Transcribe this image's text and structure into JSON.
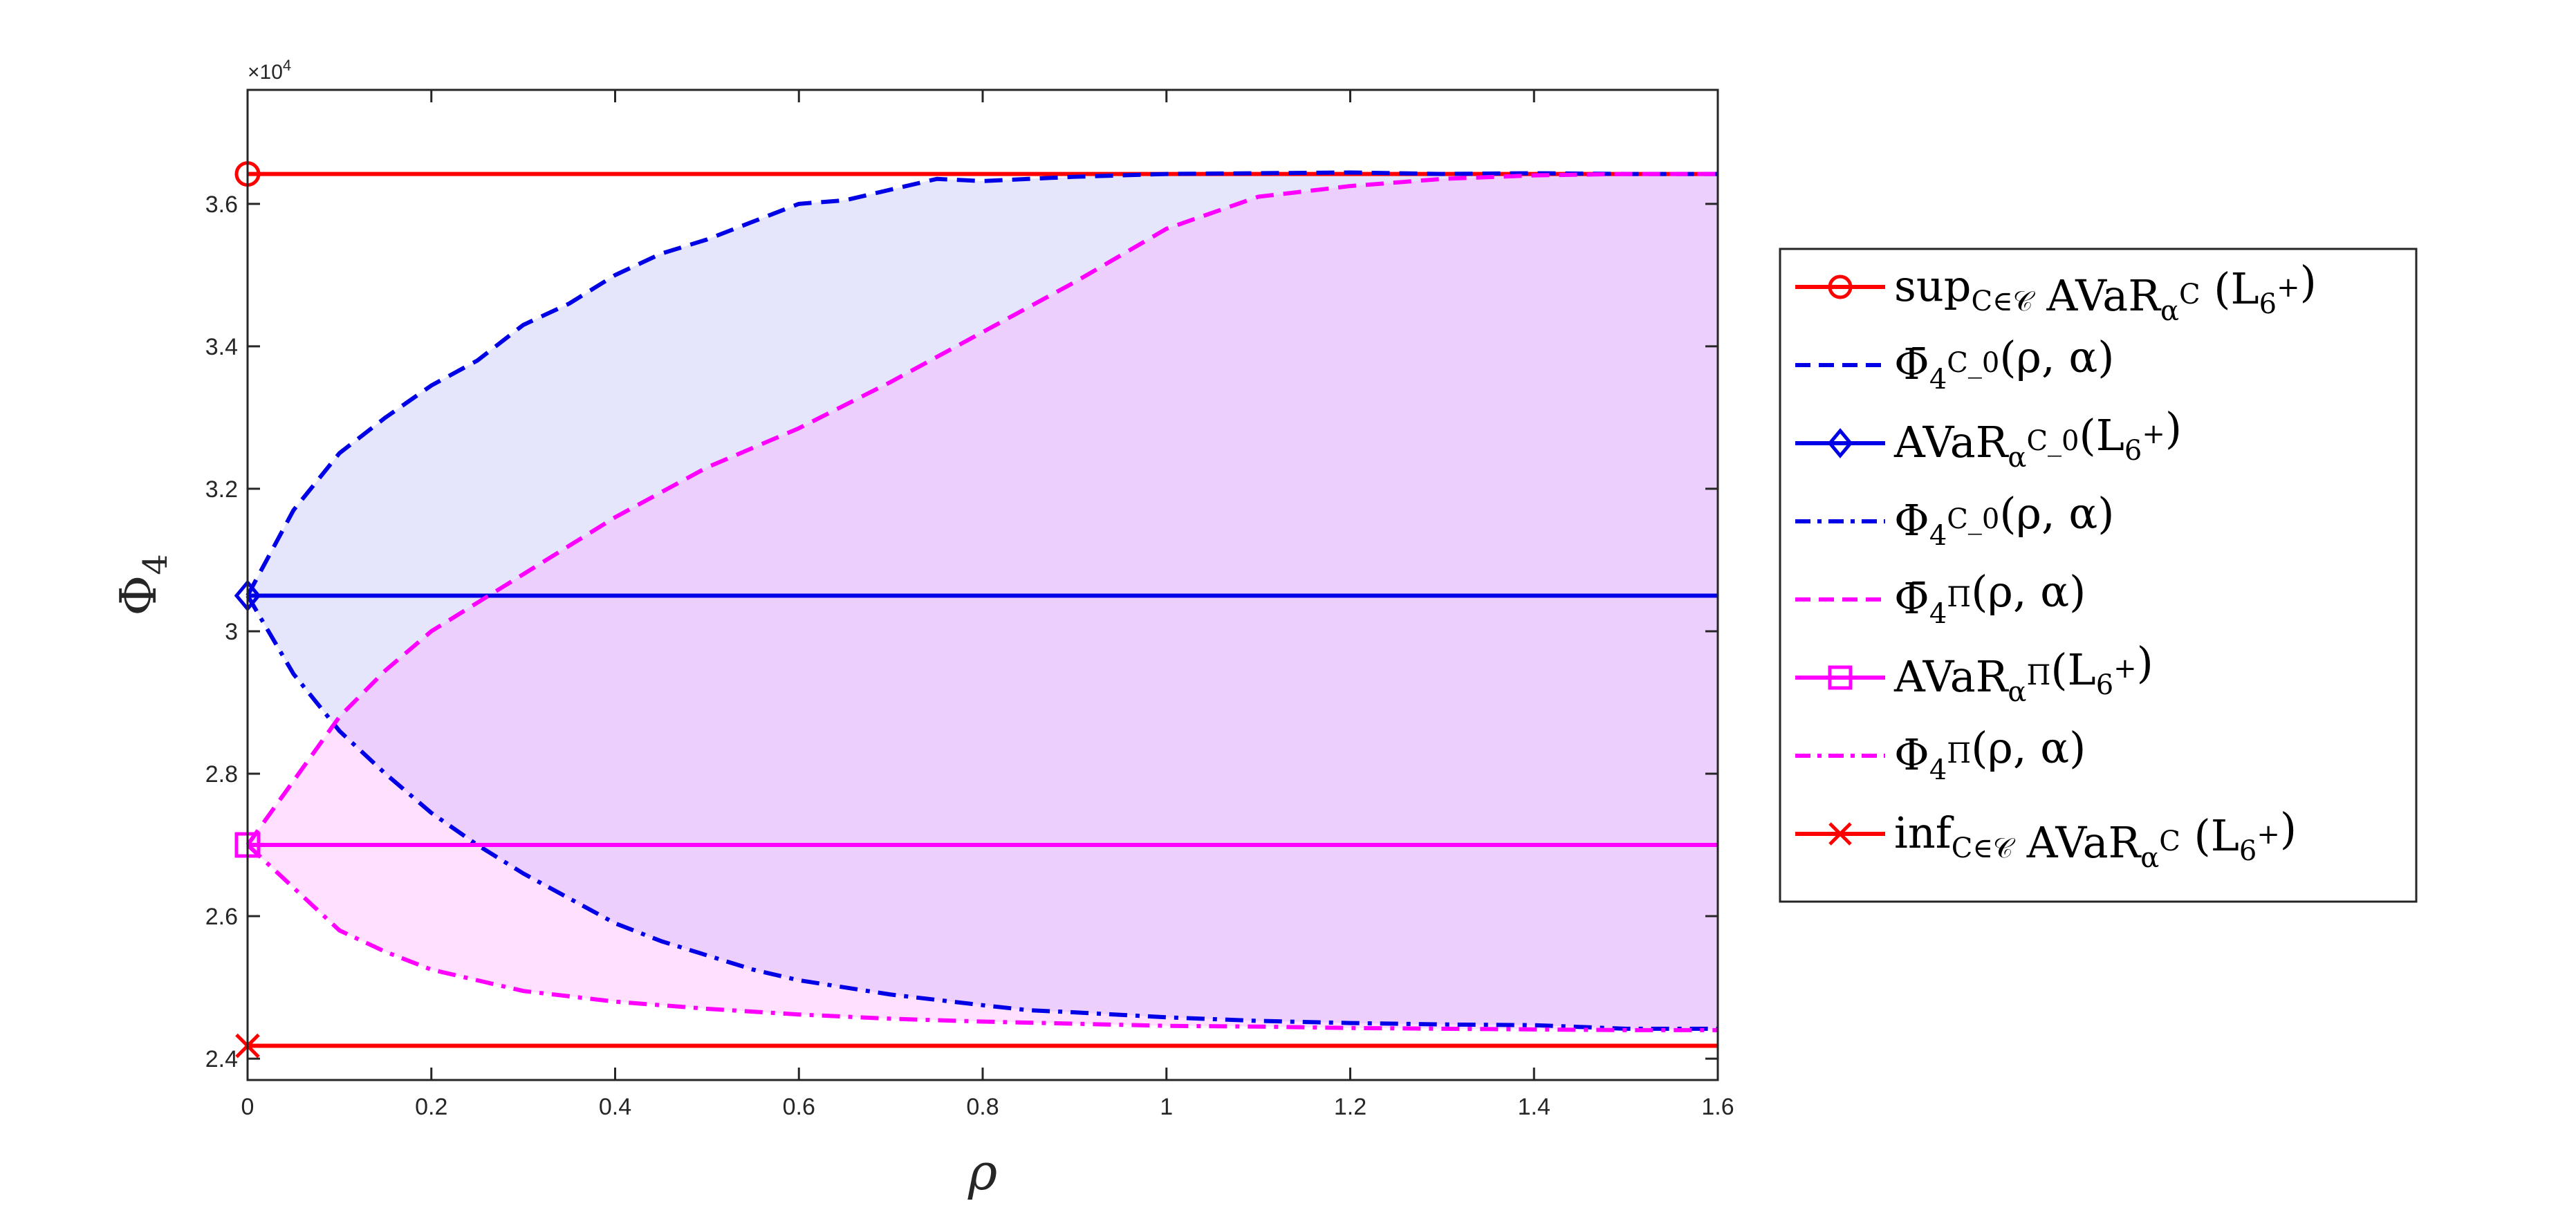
{
  "chart_data": {
    "type": "line",
    "xlabel": "ρ",
    "ylabel": "Φ4",
    "y_multiplier": "×10^4",
    "xlim": [
      0,
      1.6
    ],
    "ylim": [
      2.37,
      3.76
    ],
    "xticks": [
      "0",
      "0.2",
      "0.4",
      "0.6",
      "0.8",
      "1",
      "1.2",
      "1.4",
      "1.6"
    ],
    "xtick_values": [
      0,
      0.2,
      0.4,
      0.6,
      0.8,
      1.0,
      1.2,
      1.4,
      1.6
    ],
    "yticks": [
      "2.4",
      "2.6",
      "2.8",
      "3",
      "3.2",
      "3.4",
      "3.6"
    ],
    "ytick_values": [
      2.4,
      2.6,
      2.8,
      3.0,
      3.2,
      3.4,
      3.6
    ],
    "legend_position": "outside-right",
    "grid": false,
    "series": [
      {
        "name": "sup_{C∈𝒞} AVaR_α^C (L_6^+)",
        "color": "#ff0000",
        "style": "solid",
        "marker": "circle",
        "x": [
          0,
          1.6
        ],
        "y": [
          3.642,
          3.642
        ]
      },
      {
        "name": "Φ̄_4^{C_0}(ρ, α)",
        "color": "#0000e6",
        "style": "dashed",
        "marker": "none",
        "x": [
          0,
          0.05,
          0.1,
          0.15,
          0.2,
          0.25,
          0.3,
          0.35,
          0.4,
          0.45,
          0.5,
          0.55,
          0.6,
          0.65,
          0.7,
          0.75,
          0.8,
          0.9,
          1.0,
          1.1,
          1.2,
          1.3,
          1.4,
          1.5,
          1.6
        ],
        "y": [
          3.05,
          3.17,
          3.25,
          3.3,
          3.345,
          3.38,
          3.43,
          3.46,
          3.5,
          3.53,
          3.55,
          3.575,
          3.6,
          3.605,
          3.62,
          3.635,
          3.632,
          3.638,
          3.642,
          3.643,
          3.644,
          3.642,
          3.643,
          3.642,
          3.642
        ]
      },
      {
        "name": "AVaR_α^{C_0}(L_6^+)",
        "color": "#0000e6",
        "style": "solid",
        "marker": "diamond",
        "x": [
          0,
          1.6
        ],
        "y": [
          3.05,
          3.05
        ]
      },
      {
        "name": "Φ_4^{C_0}(ρ, α)",
        "color": "#0000e6",
        "style": "dashdot",
        "marker": "none",
        "x": [
          0,
          0.05,
          0.1,
          0.15,
          0.2,
          0.25,
          0.3,
          0.35,
          0.4,
          0.45,
          0.5,
          0.55,
          0.6,
          0.7,
          0.8,
          0.85,
          0.9,
          1.0,
          1.1,
          1.2,
          1.3,
          1.4,
          1.5,
          1.6
        ],
        "y": [
          3.05,
          2.94,
          2.86,
          2.8,
          2.745,
          2.7,
          2.66,
          2.625,
          2.59,
          2.565,
          2.545,
          2.525,
          2.51,
          2.49,
          2.475,
          2.468,
          2.465,
          2.458,
          2.453,
          2.45,
          2.448,
          2.447,
          2.442,
          2.442
        ]
      },
      {
        "name": "Φ̄_4^Π(ρ, α)",
        "color": "#ff00ff",
        "style": "dashed",
        "marker": "none",
        "x": [
          0,
          0.05,
          0.1,
          0.15,
          0.2,
          0.25,
          0.3,
          0.35,
          0.4,
          0.45,
          0.5,
          0.6,
          0.7,
          0.8,
          0.9,
          1.0,
          1.1,
          1.2,
          1.3,
          1.4,
          1.5,
          1.6
        ],
        "y": [
          2.7,
          2.79,
          2.88,
          2.945,
          3.0,
          3.04,
          3.08,
          3.12,
          3.16,
          3.195,
          3.23,
          3.285,
          3.35,
          3.42,
          3.49,
          3.565,
          3.61,
          3.625,
          3.635,
          3.64,
          3.642,
          3.642
        ]
      },
      {
        "name": "AVaR_α^Π(L_6^+)",
        "color": "#ff00ff",
        "style": "solid",
        "marker": "square",
        "x": [
          0,
          1.6
        ],
        "y": [
          2.7,
          2.7
        ]
      },
      {
        "name": "Φ_4^Π(ρ, α)",
        "color": "#ff00ff",
        "style": "dashdot",
        "marker": "none",
        "x": [
          0,
          0.05,
          0.1,
          0.15,
          0.2,
          0.3,
          0.4,
          0.5,
          0.6,
          0.7,
          0.8,
          0.9,
          1.0,
          1.1,
          1.2,
          1.3,
          1.4,
          1.5,
          1.6
        ],
        "y": [
          2.7,
          2.64,
          2.58,
          2.55,
          2.525,
          2.495,
          2.48,
          2.47,
          2.462,
          2.456,
          2.452,
          2.449,
          2.446,
          2.445,
          2.443,
          2.442,
          2.441,
          2.44,
          2.44
        ]
      },
      {
        "name": "inf_{C∈𝒞} AVaR_α^C (L_6^+)",
        "color": "#ff0000",
        "style": "solid",
        "marker": "x",
        "x": [
          0,
          1.6
        ],
        "y": [
          2.418,
          2.418
        ]
      }
    ],
    "fills": [
      {
        "between": [
          "Φ_4^{C_0}(ρ, α)",
          "Φ̄_4^{C_0}(ρ, α)"
        ],
        "color": "#b4b4f5",
        "opacity": 0.35
      },
      {
        "between": [
          "Φ_4^Π(ρ, α)",
          "Φ̄_4^Π(ρ, α)"
        ],
        "color": "#ff9cff",
        "opacity": 0.3
      }
    ]
  }
}
